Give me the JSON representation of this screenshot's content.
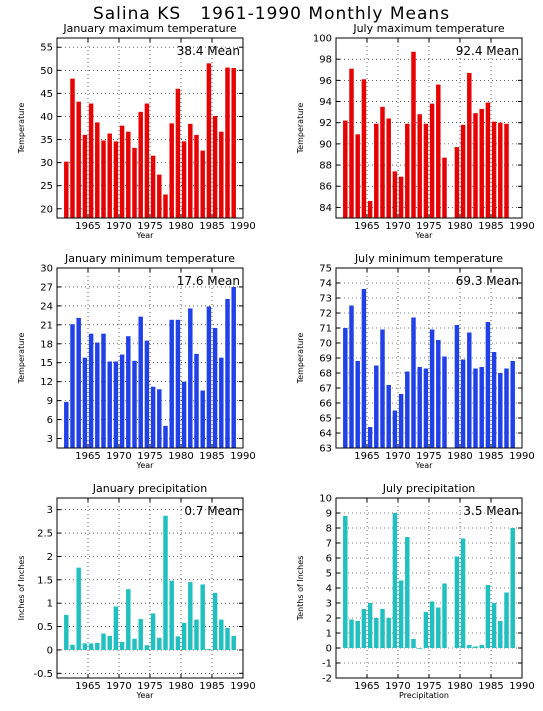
{
  "page": {
    "title": "Salina KS   1961-1990 Monthly Means"
  },
  "chart_data": [
    {
      "type": "bar",
      "title": "January maximum temperature",
      "ylabel": "Temperature",
      "xlabel": "Year",
      "mean_label": "38.4 Mean",
      "color": "#e60000",
      "x": [
        1961,
        1962,
        1963,
        1964,
        1965,
        1966,
        1967,
        1968,
        1969,
        1970,
        1971,
        1972,
        1973,
        1974,
        1975,
        1976,
        1977,
        1978,
        1979,
        1980,
        1981,
        1982,
        1983,
        1984,
        1985,
        1986,
        1987,
        1988,
        1989,
        1990
      ],
      "values": [
        30.2,
        48.2,
        43.2,
        36.0,
        42.8,
        38.7,
        34.8,
        36.3,
        34.6,
        38.0,
        36.7,
        33.2,
        41.0,
        42.8,
        31.5,
        27.4,
        23.1,
        38.5,
        46.0,
        34.6,
        38.4,
        36.0,
        32.6,
        51.5,
        40.1,
        36.7,
        50.6,
        50.5,
        null,
        null
      ],
      "ylim": [
        18,
        57
      ],
      "yticks": [
        20,
        25,
        30,
        35,
        40,
        45,
        50,
        55
      ],
      "xlim": [
        1960,
        1990
      ],
      "xticks": [
        1965,
        1970,
        1975,
        1980,
        1985,
        1990
      ],
      "grid": true
    },
    {
      "type": "bar",
      "title": "July maximum temperature",
      "ylabel": "Temperature",
      "xlabel": "Year",
      "mean_label": "92.4 Mean",
      "color": "#e60000",
      "x": [
        1961,
        1962,
        1963,
        1964,
        1965,
        1966,
        1967,
        1968,
        1969,
        1970,
        1971,
        1972,
        1973,
        1974,
        1975,
        1976,
        1977,
        1978,
        1979,
        1980,
        1981,
        1982,
        1983,
        1984,
        1985,
        1986,
        1987,
        1988,
        1989,
        1990
      ],
      "values": [
        92.2,
        97.1,
        90.9,
        96.1,
        84.6,
        91.9,
        93.5,
        92.4,
        87.4,
        86.9,
        91.9,
        98.7,
        92.8,
        91.9,
        93.8,
        95.6,
        88.7,
        null,
        89.7,
        91.8,
        96.7,
        92.9,
        93.3,
        93.9,
        92.1,
        92.0,
        91.9,
        null,
        null,
        null
      ],
      "ylim": [
        83,
        100
      ],
      "yticks": [
        84,
        86,
        88,
        90,
        92,
        94,
        96,
        98,
        100
      ],
      "xlim": [
        1960,
        1990
      ],
      "xticks": [
        1965,
        1970,
        1975,
        1980,
        1985,
        1990
      ],
      "grid": true
    },
    {
      "type": "bar",
      "title": "January minimum temperature",
      "ylabel": "Temperature",
      "xlabel": "Year",
      "mean_label": "17.6 Mean",
      "color": "#2040e8",
      "x": [
        1961,
        1962,
        1963,
        1964,
        1965,
        1966,
        1967,
        1968,
        1969,
        1970,
        1971,
        1972,
        1973,
        1974,
        1975,
        1976,
        1977,
        1978,
        1979,
        1980,
        1981,
        1982,
        1983,
        1984,
        1985,
        1986,
        1987,
        1988,
        1989,
        1990
      ],
      "values": [
        8.8,
        21.1,
        22.1,
        15.8,
        19.6,
        18.2,
        19.6,
        15.2,
        15.2,
        16.3,
        19.2,
        15.3,
        22.3,
        18.5,
        11.2,
        10.8,
        5.0,
        21.8,
        21.8,
        12.0,
        23.6,
        16.4,
        10.6,
        23.9,
        20.5,
        15.8,
        25.1,
        27.0,
        null,
        null
      ],
      "ylim": [
        1.5,
        30
      ],
      "yticks": [
        3,
        6,
        9,
        12,
        15,
        18,
        21,
        24,
        27,
        30
      ],
      "xlim": [
        1960,
        1990
      ],
      "xticks": [
        1965,
        1970,
        1975,
        1980,
        1985,
        1990
      ],
      "grid": true
    },
    {
      "type": "bar",
      "title": "July minimum temperature",
      "ylabel": "Temperature",
      "xlabel": "Year",
      "mean_label": "69.3 Mean",
      "color": "#2040e8",
      "x": [
        1961,
        1962,
        1963,
        1964,
        1965,
        1966,
        1967,
        1968,
        1969,
        1970,
        1971,
        1972,
        1973,
        1974,
        1975,
        1976,
        1977,
        1978,
        1979,
        1980,
        1981,
        1982,
        1983,
        1984,
        1985,
        1986,
        1987,
        1988,
        1989,
        1990
      ],
      "values": [
        71.0,
        72.5,
        68.8,
        73.6,
        64.4,
        68.5,
        70.9,
        67.2,
        65.5,
        66.6,
        68.1,
        71.7,
        68.4,
        68.3,
        70.9,
        70.2,
        69.1,
        null,
        71.2,
        68.9,
        70.7,
        68.3,
        68.4,
        71.4,
        69.4,
        68.0,
        68.3,
        68.8,
        null,
        null
      ],
      "ylim": [
        63,
        75
      ],
      "yticks": [
        63,
        64,
        65,
        66,
        67,
        68,
        69,
        70,
        71,
        72,
        73,
        74,
        75
      ],
      "xlim": [
        1960,
        1990
      ],
      "xticks": [
        1965,
        1970,
        1975,
        1980,
        1985,
        1990
      ],
      "grid": true
    },
    {
      "type": "bar",
      "title": "January precipitation",
      "ylabel": "Inches of Inches",
      "xlabel": "Year",
      "mean_label": "0.7 Mean",
      "color": "#20c0c0",
      "x": [
        1961,
        1962,
        1963,
        1964,
        1965,
        1966,
        1967,
        1968,
        1969,
        1970,
        1971,
        1972,
        1973,
        1974,
        1975,
        1976,
        1977,
        1978,
        1979,
        1980,
        1981,
        1982,
        1983,
        1984,
        1985,
        1986,
        1987,
        1988,
        1989,
        1990
      ],
      "values": [
        0.75,
        0.11,
        1.76,
        0.14,
        0.14,
        0.15,
        0.35,
        0.3,
        0.93,
        0.17,
        1.3,
        0.24,
        0.66,
        0.1,
        0.78,
        0.26,
        2.87,
        1.48,
        0.29,
        0.58,
        1.45,
        0.65,
        1.4,
        0.02,
        1.22,
        0.65,
        0.47,
        0.3,
        null,
        null
      ],
      "ylim": [
        -0.6,
        3.25
      ],
      "yticks": [
        -0.5,
        0,
        0.5,
        1,
        1.5,
        2,
        2.5,
        3
      ],
      "xlim": [
        1960,
        1990
      ],
      "xticks": [
        1965,
        1970,
        1975,
        1980,
        1985,
        1990
      ],
      "grid": true
    },
    {
      "type": "bar",
      "title": "July precipitation",
      "ylabel": "Tenths of Inches",
      "xlabel": "Precipitation",
      "mean_label": "3.5 Mean",
      "color": "#20c0c0",
      "x": [
        1961,
        1962,
        1963,
        1964,
        1965,
        1966,
        1967,
        1968,
        1969,
        1970,
        1971,
        1972,
        1973,
        1974,
        1975,
        1976,
        1977,
        1978,
        1979,
        1980,
        1981,
        1982,
        1983,
        1984,
        1985,
        1986,
        1987,
        1988,
        1989,
        1990
      ],
      "values": [
        8.8,
        1.9,
        1.8,
        2.6,
        3.0,
        2.0,
        2.6,
        2.0,
        9.0,
        4.5,
        7.4,
        0.6,
        0.0,
        2.4,
        3.1,
        2.7,
        4.3,
        null,
        6.1,
        7.3,
        0.2,
        0.1,
        0.2,
        4.2,
        3.0,
        1.8,
        3.7,
        8.0,
        null,
        null
      ],
      "ylim": [
        -2,
        10
      ],
      "yticks": [
        -2,
        -1,
        0,
        1,
        2,
        3,
        4,
        5,
        6,
        7,
        8,
        9,
        10
      ],
      "xlim": [
        1960,
        1990
      ],
      "xticks": [
        1965,
        1970,
        1975,
        1980,
        1985,
        1990
      ],
      "grid": true
    }
  ]
}
